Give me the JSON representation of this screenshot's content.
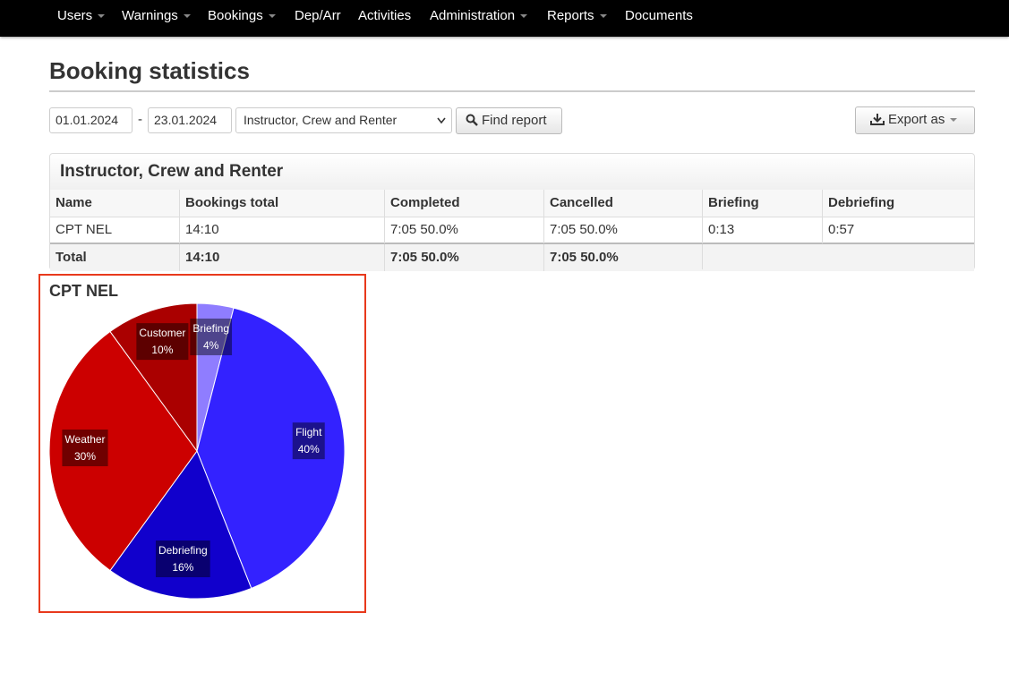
{
  "nav": [
    {
      "label": "Users",
      "dropdown": true
    },
    {
      "label": "Warnings",
      "dropdown": true
    },
    {
      "label": "Bookings",
      "dropdown": true
    },
    {
      "label": "Dep/Arr",
      "dropdown": false
    },
    {
      "label": "Activities",
      "dropdown": false
    },
    {
      "label": "Administration",
      "dropdown": true
    },
    {
      "label": "Reports",
      "dropdown": true
    },
    {
      "label": "Documents",
      "dropdown": false
    }
  ],
  "header": {
    "title": "Booking statistics"
  },
  "form": {
    "date_from": "01.01.2024",
    "separator": "-",
    "date_to": "23.01.2024",
    "report_type": "Instructor, Crew and Renter",
    "find_button": "Find report",
    "export_button": "Export as"
  },
  "table": {
    "title": "Instructor, Crew and Renter",
    "header": [
      "Name",
      "Bookings total",
      "Completed",
      "Cancelled",
      "Briefing",
      "Debriefing"
    ],
    "rows": [
      [
        "CPT NEL",
        "14:10",
        "7:05 50.0%",
        "7:05 50.0%",
        "0:13",
        "0:57"
      ]
    ],
    "total": [
      "Total",
      "14:10",
      "7:05 50.0%",
      "7:05 50.0%"
    ]
  },
  "chart_data": {
    "type": "pie",
    "title": "CPT NEL",
    "categories": [
      "Briefing",
      "Flight",
      "Debriefing",
      "Weather",
      "Customer"
    ],
    "values": [
      4,
      40,
      16,
      30,
      10
    ],
    "value_labels": [
      "4%",
      "40%",
      "16%",
      "30%",
      "10%"
    ],
    "colors": [
      "#8f7dff",
      "#3322ff",
      "#1100cc",
      "#cc0000",
      "#aa0000"
    ]
  }
}
